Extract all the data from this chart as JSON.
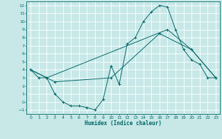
{
  "xlabel": "Humidex (Indice chaleur)",
  "bg_color": "#c8e8e8",
  "line_color": "#006666",
  "xlim": [
    -0.5,
    23.5
  ],
  "ylim": [
    -1.5,
    12.5
  ],
  "xticks": [
    0,
    1,
    2,
    3,
    4,
    5,
    6,
    7,
    8,
    9,
    10,
    11,
    12,
    13,
    14,
    15,
    16,
    17,
    18,
    19,
    20,
    21,
    22,
    23
  ],
  "yticks": [
    -1,
    0,
    1,
    2,
    3,
    4,
    5,
    6,
    7,
    8,
    9,
    10,
    11,
    12
  ],
  "line1": {
    "x": [
      0,
      1,
      2,
      3,
      4,
      5,
      6,
      7,
      8,
      9,
      10,
      11,
      12,
      13,
      14,
      15,
      16,
      17,
      18,
      19,
      20,
      21,
      22,
      23
    ],
    "y": [
      4,
      3,
      3,
      1,
      0,
      -0.5,
      -0.5,
      -0.7,
      -1,
      0.3,
      4.5,
      2.2,
      7.2,
      8,
      10,
      11.2,
      12,
      11.8,
      9,
      6.5,
      5.2,
      4.7,
      3,
      3
    ]
  },
  "line2": {
    "x": [
      0,
      2,
      17,
      20,
      23
    ],
    "y": [
      4,
      3,
      9,
      6.5,
      3
    ]
  },
  "line3": {
    "x": [
      0,
      3,
      10,
      16,
      20,
      23
    ],
    "y": [
      4,
      2.5,
      3,
      8.5,
      6.5,
      3
    ]
  }
}
